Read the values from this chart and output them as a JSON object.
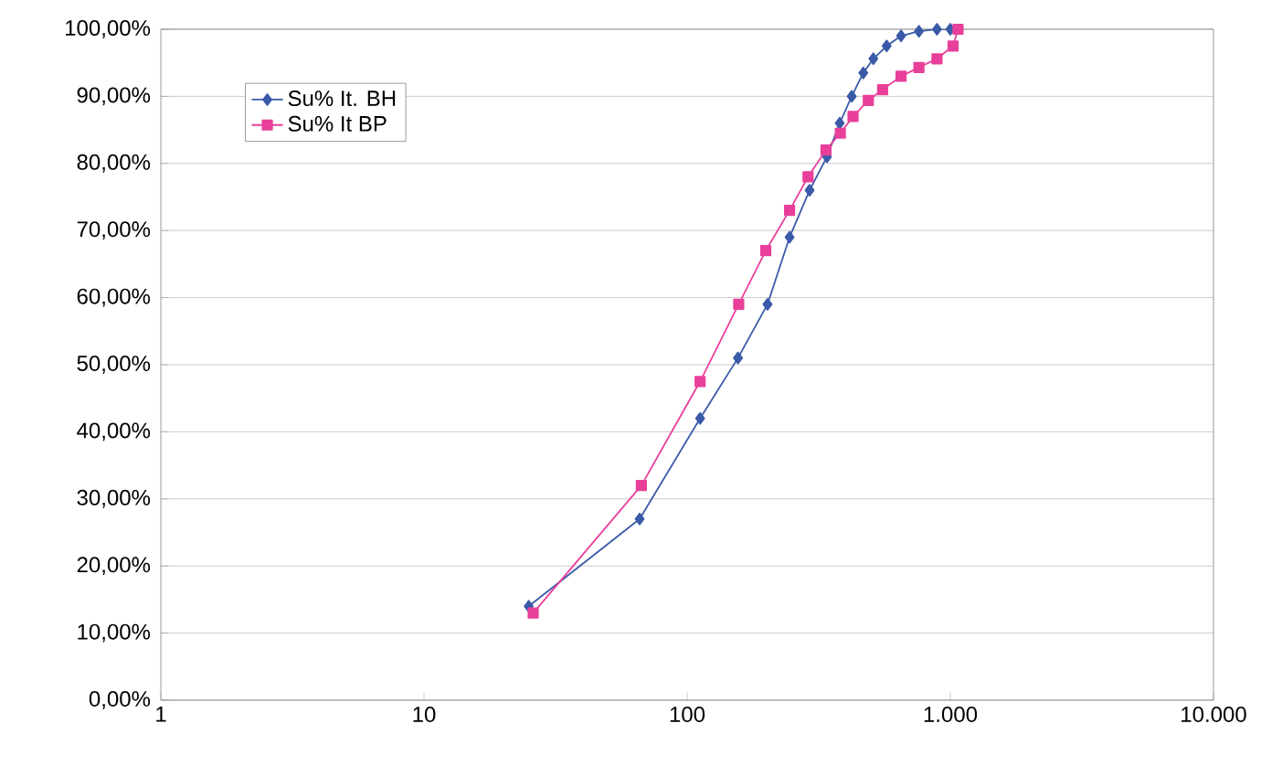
{
  "chart_data": {
    "type": "line",
    "log": "x",
    "grid": "y",
    "legend": "top left",
    "xlim": [
      1,
      10000
    ],
    "xticks": [
      1,
      10,
      100,
      {
        "value": 1000,
        "label": "1.000"
      },
      {
        "value": 10000,
        "label": "10.000"
      }
    ],
    "ylim": [
      0,
      100
    ],
    "yticks": [
      {
        "value": 0,
        "label": "0,00%"
      },
      {
        "value": 10,
        "label": "10,00%"
      },
      {
        "value": 20,
        "label": "20,00%"
      },
      {
        "value": 30,
        "label": "30,00%"
      },
      {
        "value": 40,
        "label": "40,00%"
      },
      {
        "value": 50,
        "label": "50,00%"
      },
      {
        "value": 60,
        "label": "60,00%"
      },
      {
        "value": 70,
        "label": "70,00%"
      },
      {
        "value": 80,
        "label": "80,00%"
      },
      {
        "value": 90,
        "label": "90,00%"
      },
      {
        "value": 100,
        "label": "100,00%"
      }
    ],
    "series": [
      {
        "name": "Su% It. BH",
        "color": "#3a5aa8",
        "marker": "diamond",
        "x": [
          25,
          66,
          112,
          156,
          202,
          245,
          292,
          340,
          380,
          422,
          467,
          510,
          573,
          650,
          760,
          890,
          1000
        ],
        "values": [
          14,
          27,
          42,
          51,
          59,
          69,
          76,
          81,
          86,
          90,
          93.5,
          95.6,
          97.5,
          99,
          99.7,
          100,
          100
        ]
      },
      {
        "name": "Su% It BP",
        "color": "#e8409a",
        "marker": "square",
        "x": [
          26,
          67,
          112,
          157,
          199,
          245,
          288,
          337,
          382,
          427,
          488,
          553,
          650,
          760,
          890,
          1025,
          1070
        ],
        "values": [
          13,
          32,
          47.5,
          59,
          67,
          73,
          78,
          82,
          84.5,
          87,
          89.4,
          91,
          93,
          94.3,
          95.6,
          97.5,
          100
        ]
      }
    ]
  }
}
